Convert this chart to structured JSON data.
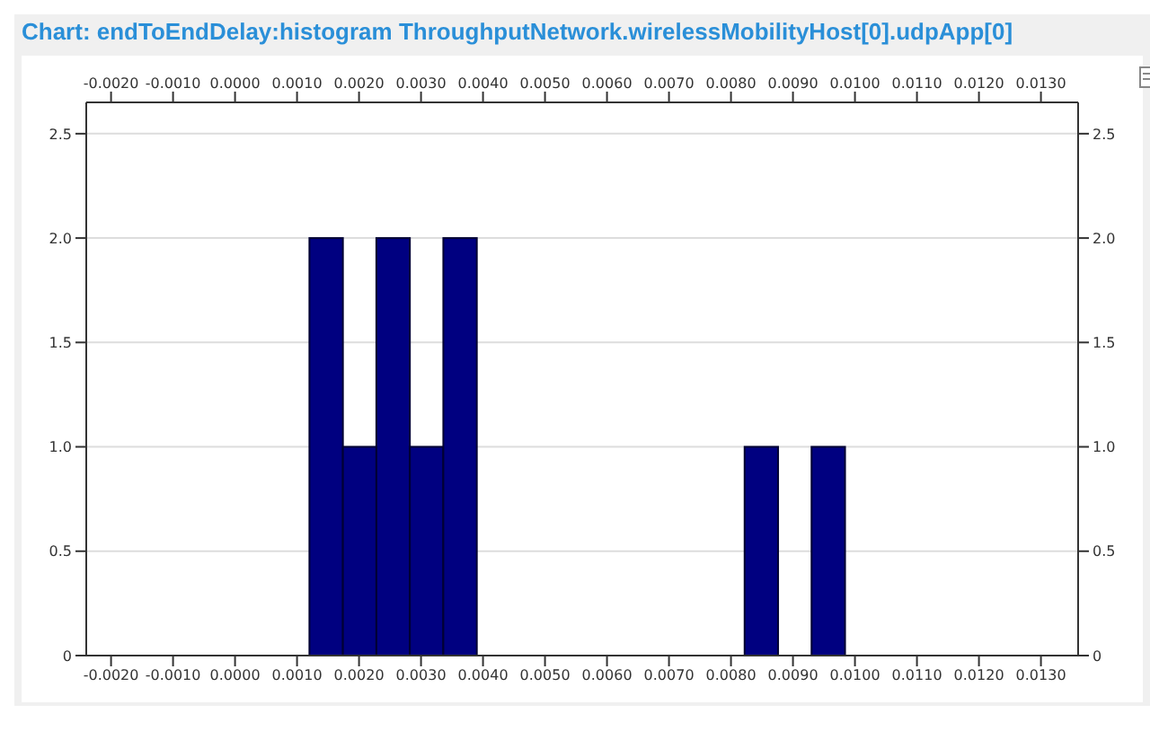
{
  "chart_data": {
    "type": "histogram",
    "title": "Chart: endToEndDelay:histogram ThroughputNetwork.wirelessMobilityHost[0].udpApp[0]",
    "bins": [
      0.0012,
      0.00174,
      0.00228,
      0.00282,
      0.00336,
      0.0039,
      0.00444,
      0.00498,
      0.00552,
      0.00606,
      0.0066,
      0.00714,
      0.00768,
      0.00822,
      0.00876,
      0.0093,
      0.00984
    ],
    "values": [
      2,
      1,
      2,
      1,
      2,
      0,
      0,
      0,
      0,
      0,
      0,
      0,
      0,
      1,
      0,
      1
    ],
    "color": "#000080",
    "xlim": [
      -0.0024,
      0.0136
    ],
    "xticks": [
      {
        "value": -0.002,
        "label": "-0.0020"
      },
      {
        "value": -0.001,
        "label": "-0.0010"
      },
      {
        "value": 0,
        "label": "0.0000"
      },
      {
        "value": 0.001,
        "label": "0.0010"
      },
      {
        "value": 0.002,
        "label": "0.0020"
      },
      {
        "value": 0.003,
        "label": "0.0030"
      },
      {
        "value": 0.004,
        "label": "0.0040"
      },
      {
        "value": 0.005,
        "label": "0.0050"
      },
      {
        "value": 0.006,
        "label": "0.0060"
      },
      {
        "value": 0.007,
        "label": "0.0070"
      },
      {
        "value": 0.008,
        "label": "0.0080"
      },
      {
        "value": 0.009,
        "label": "0.0090"
      },
      {
        "value": 0.01,
        "label": "0.0100"
      },
      {
        "value": 0.011,
        "label": "0.0110"
      },
      {
        "value": 0.012,
        "label": "0.0120"
      },
      {
        "value": 0.013,
        "label": "0.0130"
      }
    ],
    "x2lim": [
      -0.0024,
      0.0136
    ],
    "x2ticks": [
      {
        "value": -0.002,
        "label": "-0.0020"
      },
      {
        "value": -0.001,
        "label": "-0.0010"
      },
      {
        "value": 0,
        "label": "0.0000"
      },
      {
        "value": 0.001,
        "label": "0.0010"
      },
      {
        "value": 0.002,
        "label": "0.0020"
      },
      {
        "value": 0.003,
        "label": "0.0030"
      },
      {
        "value": 0.004,
        "label": "0.0040"
      },
      {
        "value": 0.005,
        "label": "0.0050"
      },
      {
        "value": 0.006,
        "label": "0.0060"
      },
      {
        "value": 0.007,
        "label": "0.0070"
      },
      {
        "value": 0.008,
        "label": "0.0080"
      },
      {
        "value": 0.009,
        "label": "0.0090"
      },
      {
        "value": 0.01,
        "label": "0.0100"
      },
      {
        "value": 0.011,
        "label": "0.0110"
      },
      {
        "value": 0.012,
        "label": "0.0120"
      },
      {
        "value": 0.013,
        "label": "0.0130"
      }
    ],
    "ylim": [
      0,
      2.65
    ],
    "yticks": [
      0,
      {
        "value": 0.5,
        "label": "0.5"
      },
      {
        "value": 1,
        "label": "1.0"
      },
      {
        "value": 1.5,
        "label": "1.5"
      },
      {
        "value": 2,
        "label": "2.0"
      },
      {
        "value": 2.5,
        "label": "2.5"
      }
    ],
    "y2lim": [
      0,
      2.65
    ],
    "y2ticks": [
      0,
      {
        "value": 0.5,
        "label": "0.5"
      },
      {
        "value": 1,
        "label": "1.0"
      },
      {
        "value": 1.5,
        "label": "1.5"
      },
      {
        "value": 2,
        "label": "2.0"
      },
      {
        "value": 2.5,
        "label": "2.5"
      }
    ],
    "grid": "y"
  }
}
